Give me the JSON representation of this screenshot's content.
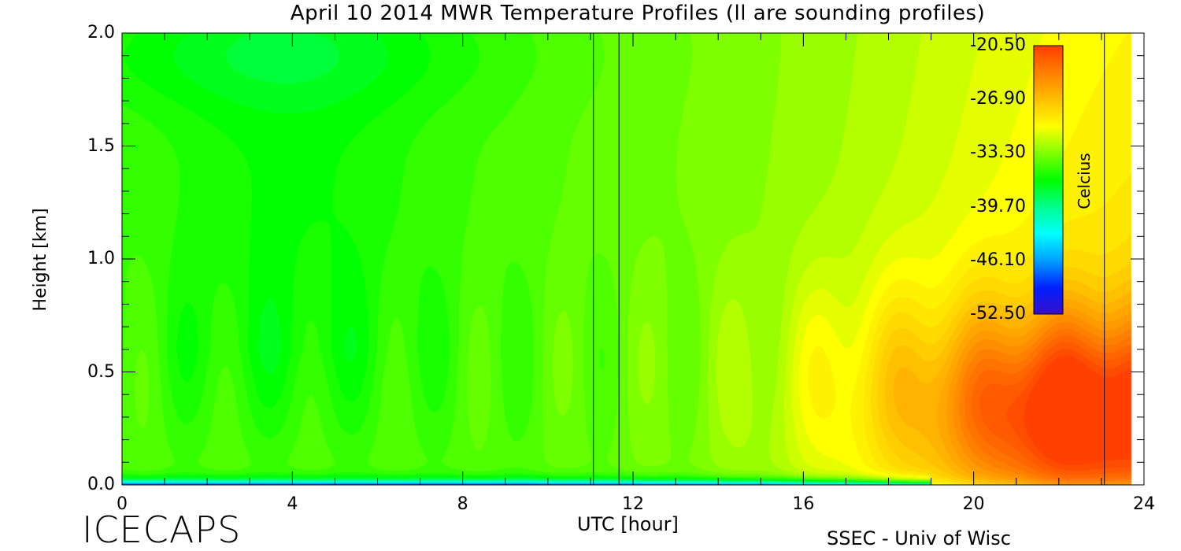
{
  "chart_data": {
    "type": "heatmap",
    "title": "April 10 2014 MWR Temperature Profiles (ll are sounding profiles)",
    "xlabel": "UTC [hour]",
    "ylabel": "Height [km]",
    "xlim": [
      0,
      24
    ],
    "ylim": [
      0,
      2.0
    ],
    "x_ticks": [
      "0",
      "4",
      "8",
      "12",
      "16",
      "20",
      "24"
    ],
    "y_ticks": [
      "0.0",
      "0.5",
      "1.0",
      "1.5",
      "2.0"
    ],
    "x_tick_values": [
      0,
      4,
      8,
      12,
      16,
      20,
      24
    ],
    "y_tick_values": [
      0.0,
      0.5,
      1.0,
      1.5,
      2.0
    ],
    "data_end_hour": 23.7,
    "sounding_profile_times": [
      11.07,
      11.67,
      23.07
    ],
    "colorbar": {
      "label": "Celcius",
      "ticks": [
        "-20.50",
        "-26.90",
        "-33.30",
        "-39.70",
        "-46.10",
        "-52.50"
      ],
      "tick_values": [
        -20.5,
        -26.9,
        -33.3,
        -39.7,
        -46.1,
        -52.5
      ],
      "range": [
        -52.5,
        -20.5
      ],
      "colors": [
        "#3a10c8",
        "#0020ff",
        "#00a0ff",
        "#00ffff",
        "#00ff90",
        "#00ff00",
        "#80ff00",
        "#ffff00",
        "#ffc000",
        "#ff8000",
        "#ff4000"
      ]
    }
  },
  "branding": {
    "program": "ICECAPS",
    "credit": "SSEC - Univ of Wisc"
  }
}
